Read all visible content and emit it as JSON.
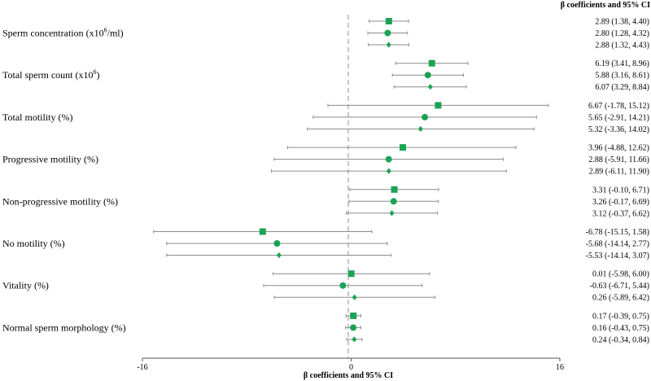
{
  "chart_data": {
    "type": "forest",
    "title": "β coefficients and 95% CI",
    "xlabel": "β coefficients and 95% CI",
    "xlim": [
      -16,
      16
    ],
    "xticks": [
      "-16",
      "0",
      "16"
    ],
    "marker_shapes": [
      "square",
      "circle",
      "diamond"
    ],
    "marker_color": "#1aa355",
    "line_color": "#8c8c8c",
    "ref_line_color": "#8c8c8c",
    "outcomes": [
      {
        "label_pre": "Sperm concentration (x10",
        "label_sup": "6",
        "label_post": "/ml)",
        "estimates": [
          {
            "estimate": 2.89,
            "lower": 1.38,
            "upper": 4.4,
            "text": "2.89 (1.38, 4.40)"
          },
          {
            "estimate": 2.8,
            "lower": 1.28,
            "upper": 4.32,
            "text": "2.80 (1.28, 4.32)"
          },
          {
            "estimate": 2.88,
            "lower": 1.32,
            "upper": 4.43,
            "text": "2.88 (1.32, 4.43)"
          }
        ]
      },
      {
        "label_pre": "Total sperm count (x10",
        "label_sup": "6",
        "label_post": ")",
        "estimates": [
          {
            "estimate": 6.19,
            "lower": 3.41,
            "upper": 8.96,
            "text": "6.19 (3.41, 8.96)"
          },
          {
            "estimate": 5.88,
            "lower": 3.16,
            "upper": 8.61,
            "text": "5.88 (3.16, 8.61)"
          },
          {
            "estimate": 6.07,
            "lower": 3.29,
            "upper": 8.84,
            "text": "6.07 (3.29, 8.84)"
          }
        ]
      },
      {
        "label_pre": "Total motility (%)",
        "label_sup": "",
        "label_post": "",
        "estimates": [
          {
            "estimate": 6.67,
            "lower": -1.78,
            "upper": 15.12,
            "text": "6.67 (-1.78, 15.12)"
          },
          {
            "estimate": 5.65,
            "lower": -2.91,
            "upper": 14.21,
            "text": "5.65 (-2.91, 14.21)"
          },
          {
            "estimate": 5.32,
            "lower": -3.36,
            "upper": 14.02,
            "text": "5.32 (-3.36, 14.02)"
          }
        ]
      },
      {
        "label_pre": "Progressive motility (%)",
        "label_sup": "",
        "label_post": "",
        "estimates": [
          {
            "estimate": 3.96,
            "lower": -4.88,
            "upper": 12.62,
            "text": "3.96 (-4.88, 12.62)"
          },
          {
            "estimate": 2.88,
            "lower": -5.91,
            "upper": 11.66,
            "text": "2.88 (-5.91, 11.66)"
          },
          {
            "estimate": 2.89,
            "lower": -6.11,
            "upper": 11.9,
            "text": "2.89 (-6.11, 11.90)"
          }
        ]
      },
      {
        "label_pre": "Non-progressive motility (%)",
        "label_sup": "",
        "label_post": "",
        "estimates": [
          {
            "estimate": 3.31,
            "lower": -0.1,
            "upper": 6.71,
            "text": "3.31 (-0.10, 6.71)"
          },
          {
            "estimate": 3.26,
            "lower": -0.17,
            "upper": 6.69,
            "text": "3.26 (-0.17, 6.69)"
          },
          {
            "estimate": 3.12,
            "lower": -0.37,
            "upper": 6.62,
            "text": "3.12 (-0.37, 6.62)"
          }
        ]
      },
      {
        "label_pre": "No motility (%)",
        "label_sup": "",
        "label_post": "",
        "estimates": [
          {
            "estimate": -6.78,
            "lower": -15.15,
            "upper": 1.58,
            "text": "-6.78 (-15.15, 1.58)"
          },
          {
            "estimate": -5.68,
            "lower": -14.14,
            "upper": 2.77,
            "text": "-5.68 (-14.14, 2.77)"
          },
          {
            "estimate": -5.53,
            "lower": -14.14,
            "upper": 3.07,
            "text": "-5.53 (-14.14, 3.07)"
          }
        ]
      },
      {
        "label_pre": "Vitality (%)",
        "label_sup": "",
        "label_post": "",
        "estimates": [
          {
            "estimate": 0.01,
            "lower": -5.98,
            "upper": 6.0,
            "text": "0.01 (-5.98, 6.00)"
          },
          {
            "estimate": -0.63,
            "lower": -6.71,
            "upper": 5.44,
            "text": "-0.63 (-6.71, 5.44)"
          },
          {
            "estimate": 0.26,
            "lower": -5.89,
            "upper": 6.42,
            "text": "0.26 (-5.89, 6.42)"
          }
        ]
      },
      {
        "label_pre": "Normal sperm morphology (%)",
        "label_sup": "",
        "label_post": "",
        "estimates": [
          {
            "estimate": 0.17,
            "lower": -0.39,
            "upper": 0.75,
            "text": "0.17 (-0.39, 0.75)"
          },
          {
            "estimate": 0.16,
            "lower": -0.43,
            "upper": 0.75,
            "text": "0.16 (-0.43, 0.75)"
          },
          {
            "estimate": 0.24,
            "lower": -0.34,
            "upper": 0.84,
            "text": "0.24 (-0.34, 0.84)"
          }
        ]
      }
    ]
  }
}
